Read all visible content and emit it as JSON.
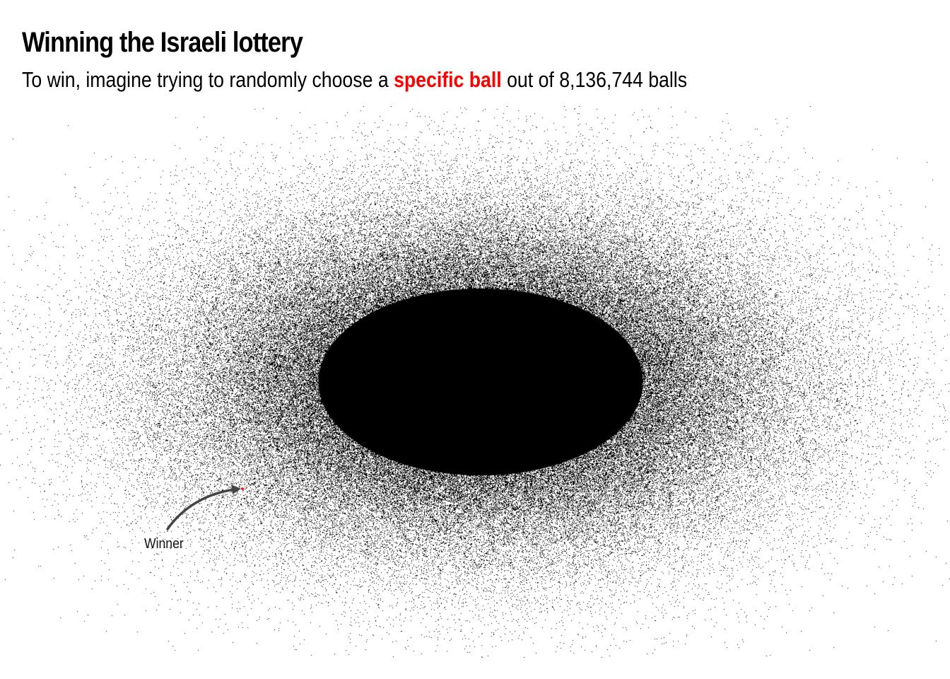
{
  "chart_data": {
    "type": "scatter",
    "title": "Winning the Israeli lottery",
    "subtitle": {
      "before": "To win, imagine trying to randomly choose a ",
      "highlight": "specific ball",
      "after": " out of 8,136,744 balls"
    },
    "total_points": 8136744,
    "distribution": "bivariate normal cloud, wider horizontally than vertically",
    "axes_visible": false,
    "grid": false,
    "point_color": "#000000",
    "highlight_color": "#ff0000",
    "annotation": {
      "label": "Winner",
      "arrow_color": "#444444",
      "target": "the single red point at the lower-left edge of the cloud"
    }
  }
}
